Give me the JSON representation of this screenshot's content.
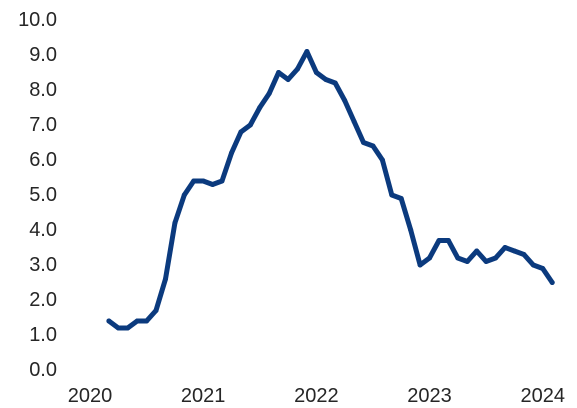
{
  "chart_data": {
    "type": "line",
    "title": "",
    "xlabel": "",
    "ylabel": "",
    "xlim": [
      "2020-01-01",
      "2024-01-31"
    ],
    "ylim": [
      0,
      10
    ],
    "grid": false,
    "legend": "none",
    "x_ticks": [
      {
        "date": "2020-01-01",
        "label": "2020"
      },
      {
        "date": "2021-01-01",
        "label": "2021"
      },
      {
        "date": "2022-01-01",
        "label": "2022"
      },
      {
        "date": "2023-01-01",
        "label": "2023"
      },
      {
        "date": "2024-01-01",
        "label": "2024"
      }
    ],
    "y_ticks": [
      {
        "value": 0,
        "label": "0.0"
      },
      {
        "value": 1,
        "label": "1.0"
      },
      {
        "value": 2,
        "label": "2.0"
      },
      {
        "value": 3,
        "label": "3.0"
      },
      {
        "value": 4,
        "label": "4.0"
      },
      {
        "value": 5,
        "label": "5.0"
      },
      {
        "value": 6,
        "label": "6.0"
      },
      {
        "value": 7,
        "label": "7.0"
      },
      {
        "value": 8,
        "label": "8.0"
      },
      {
        "value": 9,
        "label": "9.0"
      },
      {
        "value": 10,
        "label": "10.0"
      }
    ],
    "series": [
      {
        "color": "#0b3a7e",
        "x": [
          "2020-03",
          "2020-04",
          "2020-05",
          "2020-06",
          "2020-07",
          "2020-08",
          "2020-09",
          "2020-10",
          "2020-11",
          "2020-12",
          "2021-01",
          "2021-02",
          "2021-03",
          "2021-04",
          "2021-05",
          "2021-06",
          "2021-07",
          "2021-08",
          "2021-09",
          "2021-10",
          "2021-11",
          "2021-12",
          "2022-01",
          "2022-02",
          "2022-03",
          "2022-04",
          "2022-05",
          "2022-06",
          "2022-07",
          "2022-08",
          "2022-09",
          "2022-10",
          "2022-11",
          "2022-12",
          "2023-01",
          "2023-02",
          "2023-03",
          "2023-04",
          "2023-05",
          "2023-06",
          "2023-07",
          "2023-08",
          "2023-09",
          "2023-10",
          "2023-11",
          "2023-12",
          "2024-01",
          "2024-02"
        ],
        "values": [
          1.4,
          1.2,
          1.2,
          1.4,
          1.4,
          1.7,
          2.6,
          4.2,
          5.0,
          5.4,
          5.4,
          5.3,
          5.4,
          6.2,
          6.8,
          7.0,
          7.5,
          7.9,
          8.5,
          8.3,
          8.6,
          9.1,
          8.5,
          8.3,
          8.2,
          7.7,
          7.1,
          6.5,
          6.4,
          6.0,
          5.0,
          4.9,
          4.0,
          3.0,
          3.2,
          3.7,
          3.7,
          3.2,
          3.1,
          3.4,
          3.1,
          3.2,
          3.5,
          3.4,
          3.3,
          3.0,
          2.9,
          2.5
        ]
      }
    ]
  }
}
